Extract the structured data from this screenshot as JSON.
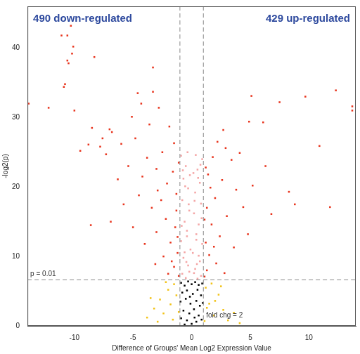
{
  "chart_data": {
    "type": "scatter",
    "x_label": "Difference of Groups' Mean Log2 Expression Value",
    "y_label": "-log2(p)",
    "annotations": [
      "490 down-regulated",
      "429 up-regulated"
    ],
    "reference_lines": [
      {
        "axis": "y",
        "value": 6.64,
        "label": "p = 0.01"
      },
      {
        "axis": "x",
        "value": -1
      },
      {
        "axis": "x",
        "value": 1,
        "label": "fold chg = 2"
      }
    ],
    "xlim": [
      -14,
      14
    ],
    "xticks": [
      -10,
      -5,
      0,
      5,
      10
    ],
    "ylim": [
      0,
      46
    ],
    "yticks": [
      0,
      10,
      20,
      30,
      40
    ],
    "grid": false,
    "marker": "square",
    "series": [
      {
        "color": "#000000",
        "values": [
          [
            -0.9,
            6.2
          ],
          [
            -0.6,
            5.8
          ],
          [
            -0.3,
            6.4
          ],
          [
            0,
            6.0
          ],
          [
            0.3,
            6.3
          ],
          [
            0.6,
            5.9
          ],
          [
            0.9,
            6.1
          ],
          [
            -0.8,
            4.8
          ],
          [
            -0.4,
            5.1
          ],
          [
            0.1,
            4.6
          ],
          [
            0.5,
            5.2
          ],
          [
            0.8,
            4.4
          ],
          [
            -0.95,
            3.5
          ],
          [
            -0.5,
            3.9
          ],
          [
            -0.1,
            3.2
          ],
          [
            0.4,
            3.6
          ],
          [
            0.7,
            2.9
          ],
          [
            0.95,
            3.3
          ],
          [
            -0.7,
            2.2
          ],
          [
            -0.2,
            1.8
          ],
          [
            0.2,
            2.4
          ],
          [
            0.6,
            1.5
          ],
          [
            -0.9,
            1.1
          ],
          [
            -0.4,
            0.8
          ],
          [
            0.0,
            0.3
          ],
          [
            0.4,
            0.6
          ],
          [
            0.85,
            0.9
          ],
          [
            -0.6,
            0.2
          ],
          [
            0.25,
            1.2
          ],
          [
            -0.15,
            4.2
          ]
        ]
      },
      {
        "color": "#f2c318",
        "values": [
          [
            -3.8,
            1.2
          ],
          [
            -3.2,
            2.5
          ],
          [
            -2.7,
            3.8
          ],
          [
            -2.4,
            1.8
          ],
          [
            -2.0,
            5.2
          ],
          [
            -1.8,
            3.1
          ],
          [
            -1.5,
            6.0
          ],
          [
            -1.3,
            4.4
          ],
          [
            -1.1,
            2.0
          ],
          [
            -2.9,
            0.6
          ],
          [
            -3.5,
            4.0
          ],
          [
            -1.6,
            0.9
          ],
          [
            -2.2,
            6.3
          ],
          [
            1.2,
            5.5
          ],
          [
            1.5,
            3.2
          ],
          [
            1.9,
            1.5
          ],
          [
            2.3,
            4.5
          ],
          [
            2.7,
            2.3
          ],
          [
            3.1,
            0.8
          ],
          [
            3.6,
            1.9
          ],
          [
            1.1,
            0.7
          ],
          [
            1.7,
            6.1
          ],
          [
            2.0,
            3.6
          ],
          [
            4.1,
            0.4
          ],
          [
            2.5,
            5.7
          ],
          [
            1.3,
            2.6
          ]
        ]
      },
      {
        "color": "#f4a6a6",
        "values": [
          [
            -0.9,
            24.5
          ],
          [
            -0.5,
            23.0
          ],
          [
            -0.7,
            21.2
          ],
          [
            -0.3,
            19.8
          ],
          [
            -0.8,
            18.1
          ],
          [
            -0.2,
            16.6
          ],
          [
            -0.6,
            15.0
          ],
          [
            -0.4,
            13.7
          ],
          [
            -0.9,
            12.2
          ],
          [
            -0.1,
            11.0
          ],
          [
            -0.7,
            9.8
          ],
          [
            -0.3,
            8.7
          ],
          [
            -0.8,
            7.5
          ],
          [
            -0.5,
            6.9
          ],
          [
            -0.2,
            7.8
          ],
          [
            -0.6,
            10.6
          ],
          [
            -0.4,
            12.9
          ],
          [
            -0.85,
            14.4
          ],
          [
            -0.25,
            17.5
          ],
          [
            -0.55,
            20.1
          ],
          [
            -0.75,
            22.4
          ],
          [
            -0.35,
            25.0
          ],
          [
            0.9,
            24.0
          ],
          [
            0.5,
            22.5
          ],
          [
            0.7,
            20.6
          ],
          [
            0.3,
            19.2
          ],
          [
            0.8,
            17.6
          ],
          [
            0.2,
            16.2
          ],
          [
            0.6,
            14.6
          ],
          [
            0.4,
            13.2
          ],
          [
            0.9,
            11.8
          ],
          [
            0.1,
            10.5
          ],
          [
            0.7,
            9.3
          ],
          [
            0.3,
            8.2
          ],
          [
            0.8,
            7.2
          ],
          [
            0.5,
            6.8
          ],
          [
            0.2,
            7.6
          ],
          [
            0.6,
            10.1
          ],
          [
            0.4,
            12.4
          ],
          [
            0.85,
            15.5
          ],
          [
            0.25,
            18.0
          ],
          [
            0.55,
            21.3
          ],
          [
            0.75,
            23.2
          ],
          [
            0.35,
            24.6
          ],
          [
            -0.15,
            21.7
          ],
          [
            0.15,
            22.0
          ],
          [
            -0.45,
            9.2
          ],
          [
            0.45,
            8.9
          ]
        ]
      },
      {
        "color": "#e8351e",
        "values": [
          [
            -10.3,
            43.2
          ],
          [
            -10.6,
            41.8
          ],
          [
            -11.1,
            41.8
          ],
          [
            -10.1,
            40.2
          ],
          [
            -10.2,
            39.2
          ],
          [
            -10.6,
            38.2
          ],
          [
            -10.5,
            37.8
          ],
          [
            -8.3,
            38.7
          ],
          [
            -10.8,
            34.8
          ],
          [
            -10.9,
            34.4
          ],
          [
            -10.0,
            31.0
          ],
          [
            -12.2,
            31.4
          ],
          [
            -13.9,
            32.0
          ],
          [
            -3.3,
            37.2
          ],
          [
            -3.3,
            33.7
          ],
          [
            -4.6,
            33.5
          ],
          [
            -4.3,
            32.0
          ],
          [
            -6.8,
            27.9
          ],
          [
            -7.0,
            28.3
          ],
          [
            -7.6,
            27.0
          ],
          [
            -8.5,
            28.5
          ],
          [
            -8.8,
            26.1
          ],
          [
            -7.8,
            25.8
          ],
          [
            -7.3,
            24.7
          ],
          [
            -9.5,
            25.2
          ],
          [
            -6.0,
            26.2
          ],
          [
            -5.1,
            30.1
          ],
          [
            -4.8,
            27.0
          ],
          [
            -3.6,
            29.0
          ],
          [
            -2.8,
            31.4
          ],
          [
            -1.9,
            28.7
          ],
          [
            -1.5,
            26.3
          ],
          [
            -2.5,
            25.0
          ],
          [
            -3.8,
            24.2
          ],
          [
            -5.4,
            23.0
          ],
          [
            -6.3,
            21.1
          ],
          [
            -4.2,
            21.5
          ],
          [
            -3.0,
            22.6
          ],
          [
            -2.1,
            20.5
          ],
          [
            -1.6,
            22.2
          ],
          [
            -1.3,
            19.0
          ],
          [
            -2.6,
            18.1
          ],
          [
            -3.4,
            17.0
          ],
          [
            -4.5,
            18.8
          ],
          [
            -5.8,
            17.5
          ],
          [
            -8.6,
            14.5
          ],
          [
            -6.9,
            15.0
          ],
          [
            -2.2,
            15.4
          ],
          [
            -1.4,
            14.2
          ],
          [
            -3.0,
            13.5
          ],
          [
            -1.8,
            12.0
          ],
          [
            -1.2,
            10.5
          ],
          [
            -2.4,
            10.0
          ],
          [
            -1.5,
            8.5
          ],
          [
            -1.1,
            7.2
          ],
          [
            -2.0,
            7.5
          ],
          [
            -3.1,
            8.9
          ],
          [
            -4.0,
            11.8
          ],
          [
            -1.3,
            16.6
          ],
          [
            -1.1,
            23.5
          ],
          [
            -2.9,
            19.5
          ],
          [
            -5.0,
            14.2
          ],
          [
            -1.7,
            9.3
          ],
          [
            -1.2,
            12.8
          ],
          [
            7.5,
            32.2
          ],
          [
            9.7,
            33.0
          ],
          [
            12.3,
            33.9
          ],
          [
            13.7,
            31.6
          ],
          [
            13.7,
            31.0
          ],
          [
            10.9,
            25.9
          ],
          [
            11.8,
            17.1
          ],
          [
            8.8,
            17.5
          ],
          [
            8.3,
            19.3
          ],
          [
            6.3,
            23.0
          ],
          [
            6.1,
            29.3
          ],
          [
            4.9,
            29.4
          ],
          [
            5.1,
            33.1
          ],
          [
            2.7,
            28.2
          ],
          [
            3.4,
            23.9
          ],
          [
            2.2,
            26.5
          ],
          [
            1.8,
            24.3
          ],
          [
            1.4,
            21.8
          ],
          [
            2.6,
            21.0
          ],
          [
            3.8,
            19.6
          ],
          [
            5.2,
            20.2
          ],
          [
            4.4,
            17.1
          ],
          [
            2.0,
            18.4
          ],
          [
            1.3,
            17.0
          ],
          [
            3.0,
            15.8
          ],
          [
            1.7,
            14.6
          ],
          [
            2.4,
            12.9
          ],
          [
            1.2,
            12.0
          ],
          [
            3.6,
            11.3
          ],
          [
            1.5,
            10.2
          ],
          [
            2.1,
            9.0
          ],
          [
            1.3,
            8.0
          ],
          [
            1.1,
            7.1
          ],
          [
            2.8,
            7.6
          ],
          [
            4.8,
            13.2
          ],
          [
            1.6,
            19.9
          ],
          [
            2.9,
            25.6
          ],
          [
            1.2,
            22.8
          ],
          [
            4.1,
            24.9
          ],
          [
            6.8,
            16.1
          ],
          [
            1.9,
            11.4
          ],
          [
            1.1,
            15.3
          ]
        ]
      }
    ]
  }
}
